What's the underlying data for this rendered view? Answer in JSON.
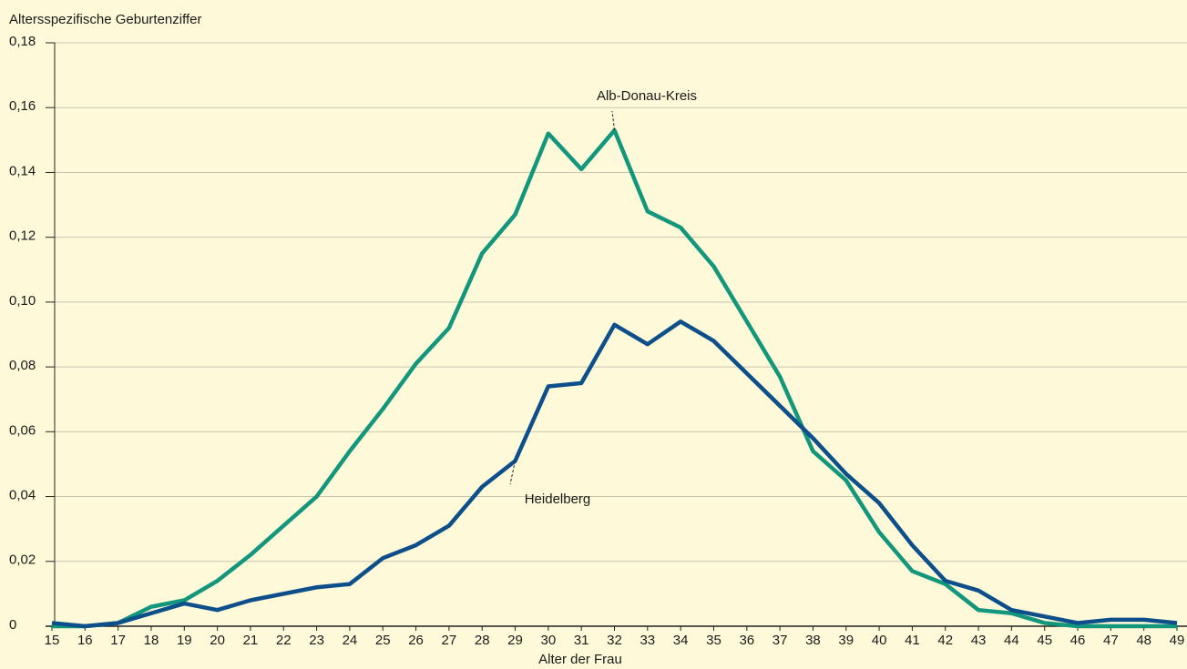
{
  "chart_data": {
    "type": "line",
    "y_label": "Altersspezifische Geburtenziffer",
    "x_label": "Alter der Frau",
    "x": [
      15,
      16,
      17,
      18,
      19,
      20,
      21,
      22,
      23,
      24,
      25,
      26,
      27,
      28,
      29,
      30,
      31,
      32,
      33,
      34,
      35,
      36,
      37,
      38,
      39,
      40,
      41,
      42,
      43,
      44,
      45,
      46,
      47,
      48,
      49
    ],
    "series": [
      {
        "name": "Alb-Donau-Kreis",
        "color": "#12977c",
        "values": [
          0,
          0,
          0.001,
          0.006,
          0.008,
          0.014,
          0.022,
          0.031,
          0.04,
          0.054,
          0.067,
          0.081,
          0.092,
          0.115,
          0.127,
          0.152,
          0.141,
          0.153,
          0.128,
          0.123,
          0.111,
          0.094,
          0.077,
          0.054,
          0.045,
          0.029,
          0.017,
          0.013,
          0.005,
          0.004,
          0.001,
          0,
          0,
          0,
          0
        ]
      },
      {
        "name": "Heidelberg",
        "color": "#0c4f8a",
        "values": [
          0.001,
          0,
          0.001,
          0.004,
          0.007,
          0.005,
          0.008,
          0.01,
          0.012,
          0.013,
          0.021,
          0.025,
          0.031,
          0.043,
          0.051,
          0.074,
          0.075,
          0.093,
          0.087,
          0.094,
          0.088,
          0.078,
          0.068,
          0.058,
          0.047,
          0.038,
          0.025,
          0.014,
          0.011,
          0.005,
          0.003,
          0.001,
          0.002,
          0.002,
          0.001
        ]
      }
    ],
    "xlim": [
      15,
      49
    ],
    "xticks": [
      15,
      16,
      17,
      18,
      19,
      20,
      21,
      22,
      23,
      24,
      25,
      26,
      27,
      28,
      29,
      30,
      31,
      32,
      33,
      34,
      35,
      36,
      37,
      38,
      39,
      40,
      41,
      42,
      43,
      44,
      45,
      46,
      47,
      48,
      49
    ],
    "ylim": [
      0,
      0.18
    ],
    "yticks": [
      0,
      {
        "value": 0.02,
        "label": "0,02"
      },
      {
        "value": 0.04,
        "label": "0,04"
      },
      {
        "value": 0.06,
        "label": "0,06"
      },
      {
        "value": 0.08,
        "label": "0,08"
      },
      {
        "value": 0.1,
        "label": "0,10"
      },
      {
        "value": 0.12,
        "label": "0,12"
      },
      {
        "value": 0.14,
        "label": "0,14"
      },
      {
        "value": 0.16,
        "label": "0,16"
      },
      {
        "value": 0.18,
        "label": "0,18"
      }
    ],
    "grid": true
  }
}
